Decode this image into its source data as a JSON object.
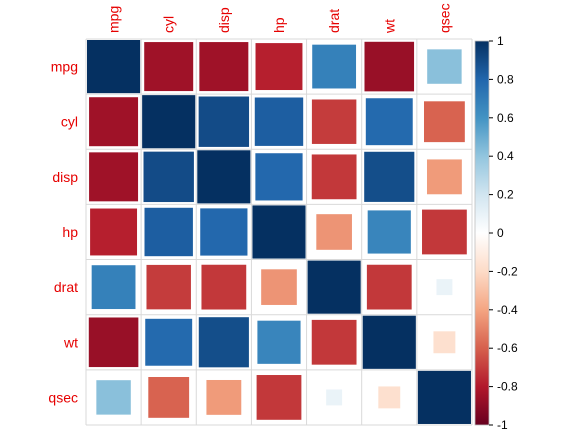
{
  "chart_data": {
    "type": "heatmap",
    "variables": [
      "mpg",
      "cyl",
      "disp",
      "hp",
      "drat",
      "wt",
      "qsec"
    ],
    "matrix": [
      [
        1.0,
        -0.85,
        -0.85,
        -0.78,
        0.68,
        -0.87,
        0.42
      ],
      [
        -0.85,
        1.0,
        0.9,
        0.83,
        -0.7,
        0.78,
        -0.59
      ],
      [
        -0.85,
        0.9,
        1.0,
        0.79,
        -0.71,
        0.89,
        -0.43
      ],
      [
        -0.78,
        0.83,
        0.79,
        1.0,
        -0.45,
        0.66,
        -0.71
      ],
      [
        0.68,
        -0.7,
        -0.71,
        -0.45,
        1.0,
        -0.71,
        0.09
      ],
      [
        -0.87,
        0.78,
        0.89,
        0.66,
        -0.71,
        1.0,
        -0.17
      ],
      [
        0.42,
        -0.59,
        -0.43,
        -0.71,
        0.09,
        -0.17,
        1.0
      ]
    ],
    "method": "square",
    "colorbar": {
      "ticks": [
        "1",
        "0.8",
        "0.6",
        "0.4",
        "0.2",
        "0",
        "-0.2",
        "-0.4",
        "-0.6",
        "-0.8",
        "-1"
      ],
      "range": [
        -1,
        1
      ]
    }
  }
}
